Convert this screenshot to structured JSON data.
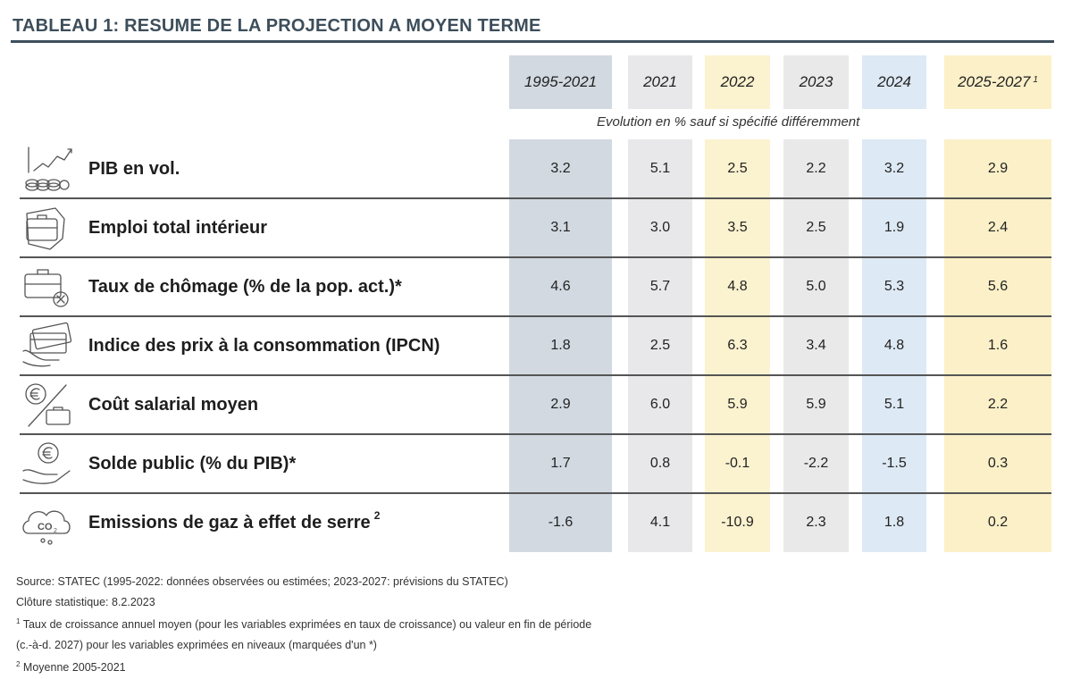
{
  "title": "TABLEAU 1: RESUME DE LA PROJECTION A MOYEN TERME",
  "subheader": "Evolution en % sauf si spécifié différemment",
  "colors": {
    "title": "#3d4e5b",
    "band_1995_2021": "#d2d9e1",
    "band_2021": "#e8e8ea",
    "band_2022": "#fbf2cf",
    "band_2023": "#e9e9ea",
    "band_2024": "#dde9f4",
    "band_2025_2027": "#fbf0c8"
  },
  "chart_data": {
    "type": "table",
    "columns": [
      {
        "label": "1995-2021",
        "footnote": ""
      },
      {
        "label": "2021",
        "footnote": ""
      },
      {
        "label": "2022",
        "footnote": ""
      },
      {
        "label": "2023",
        "footnote": ""
      },
      {
        "label": "2024",
        "footnote": ""
      },
      {
        "label": "2025-2027",
        "footnote": "1"
      }
    ],
    "rows": [
      {
        "label": "PIB en vol.",
        "footnote": "",
        "icon": "growth-chart-icon",
        "values": [
          "3.2",
          "5.1",
          "2.5",
          "2.2",
          "3.2",
          "2.9"
        ]
      },
      {
        "label": "Emploi total intérieur",
        "footnote": "",
        "icon": "briefcase-map-icon",
        "values": [
          "3.1",
          "3.0",
          "3.5",
          "2.5",
          "1.9",
          "2.4"
        ]
      },
      {
        "label": "Taux de chômage (% de la pop. act.)*",
        "footnote": "",
        "icon": "briefcase-x-icon",
        "values": [
          "4.6",
          "5.7",
          "4.8",
          "5.0",
          "5.3",
          "5.6"
        ]
      },
      {
        "label": "Indice des prix à la consommation (IPCN)",
        "footnote": "",
        "icon": "credit-card-hand-icon",
        "values": [
          "1.8",
          "2.5",
          "6.3",
          "3.4",
          "4.8",
          "1.6"
        ]
      },
      {
        "label": "Coût salarial moyen",
        "footnote": "",
        "icon": "euro-briefcase-icon",
        "values": [
          "2.9",
          "6.0",
          "5.9",
          "5.9",
          "5.1",
          "2.2"
        ]
      },
      {
        "label": "Solde public (% du PIB)*",
        "footnote": "",
        "icon": "hand-euro-coin-icon",
        "values": [
          "1.7",
          "0.8",
          "-0.1",
          "-2.2",
          "-1.5",
          "0.3"
        ]
      },
      {
        "label": "Emissions de gaz à effet de serre",
        "footnote": "2",
        "icon": "co2-cloud-icon",
        "values": [
          "-1.6",
          "4.1",
          "-10.9",
          "2.3",
          "1.8",
          "0.2"
        ]
      }
    ]
  },
  "notes": {
    "source": "Source: STATEC (1995-2022: données observées ou estimées; 2023-2027: prévisions du STATEC)",
    "cloture": "Clôture statistique: 8.2.2023",
    "fn1_mark": "1",
    "fn1_line1": " Taux de croissance annuel moyen (pour les variables exprimées en taux de croissance) ou valeur en fin de période",
    "fn1_line2": "(c.-à-d. 2027) pour les variables exprimées en niveaux (marquées d'un *)",
    "fn2_mark": "2",
    "fn2_text": " Moyenne 2005-2021"
  }
}
